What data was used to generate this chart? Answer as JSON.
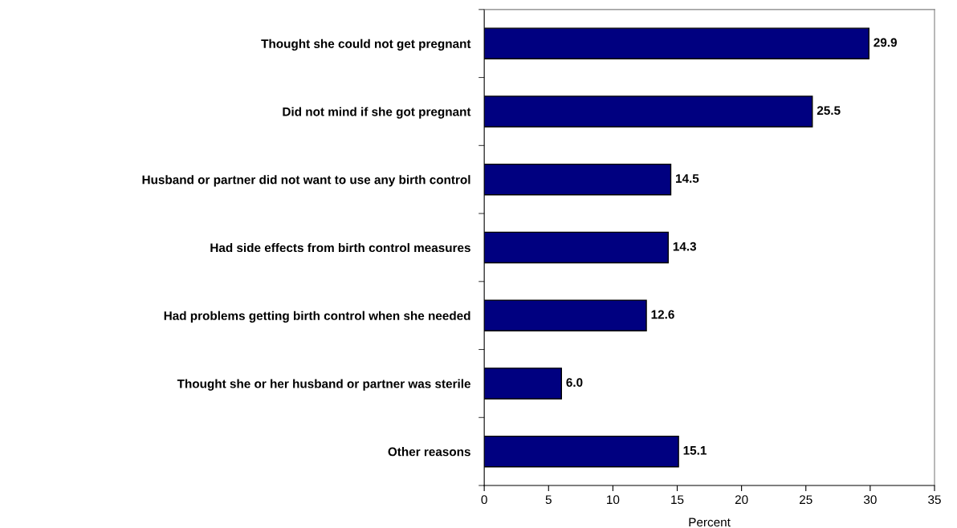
{
  "chart_data": {
    "type": "bar",
    "orientation": "horizontal",
    "categories": [
      "Thought she could not get pregnant",
      "Did not mind if she got pregnant",
      "Husband or partner did not want to use any birth control",
      "Had side effects from birth control measures",
      "Had problems getting birth control when she needed",
      "Thought she or her husband or partner was sterile",
      "Other reasons"
    ],
    "values": [
      29.9,
      25.5,
      14.5,
      14.3,
      12.6,
      6.0,
      15.1
    ],
    "value_labels": [
      "29.9",
      "25.5",
      "14.5",
      "14.3",
      "12.6",
      "6.0",
      "15.1"
    ],
    "color": "#000080",
    "xlabel": "Percent",
    "xlim": [
      0,
      35
    ],
    "xticks": [
      0,
      5,
      10,
      15,
      20,
      25,
      30,
      35
    ],
    "grid": false,
    "legend": false
  }
}
